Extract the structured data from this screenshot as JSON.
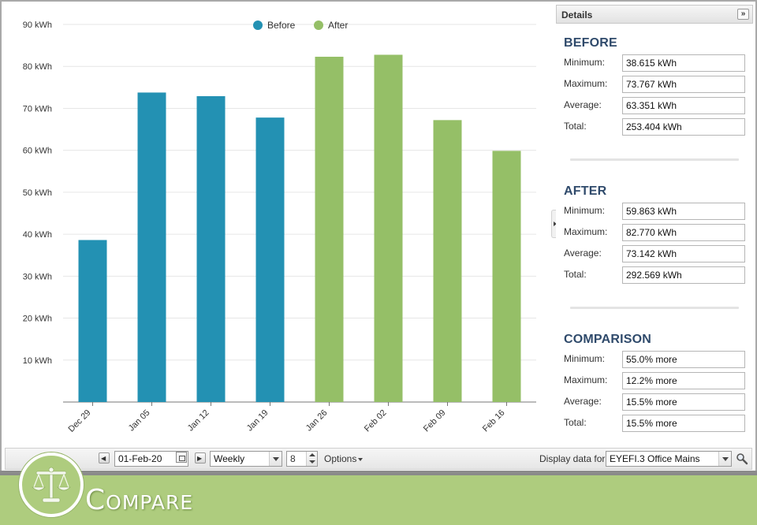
{
  "chart_data": {
    "type": "bar",
    "categories": [
      "Dec 29",
      "Jan 05",
      "Jan 12",
      "Jan 19",
      "Jan 26",
      "Feb 02",
      "Feb 09",
      "Feb 16"
    ],
    "values": [
      38.615,
      73.767,
      72.9,
      67.8,
      82.3,
      82.77,
      67.2,
      59.863
    ],
    "group": [
      "Before",
      "Before",
      "Before",
      "Before",
      "After",
      "After",
      "After",
      "After"
    ],
    "series": [
      {
        "name": "Before",
        "color": "#2391b3"
      },
      {
        "name": "After",
        "color": "#95bf67"
      }
    ],
    "unit": "kWh",
    "yticks": [
      10,
      20,
      30,
      40,
      50,
      60,
      70,
      80,
      90
    ],
    "ytick_labels": [
      "10 kWh",
      "20 kWh",
      "30 kWh",
      "40 kWh",
      "50 kWh",
      "60 kWh",
      "70 kWh",
      "80 kWh",
      "90 kWh"
    ],
    "ylim": [
      0,
      90
    ],
    "grid": true,
    "legend": "top-center"
  },
  "details": {
    "title": "Details",
    "toggle_label": "»",
    "sections": [
      {
        "title": "BEFORE",
        "rows": [
          {
            "label": "Minimum:",
            "value": "38.615 kWh"
          },
          {
            "label": "Maximum:",
            "value": "73.767 kWh"
          },
          {
            "label": "Average:",
            "value": "63.351 kWh"
          },
          {
            "label": "Total:",
            "value": "253.404 kWh"
          }
        ]
      },
      {
        "title": "AFTER",
        "rows": [
          {
            "label": "Minimum:",
            "value": "59.863 kWh"
          },
          {
            "label": "Maximum:",
            "value": "82.770 kWh"
          },
          {
            "label": "Average:",
            "value": "73.142 kWh"
          },
          {
            "label": "Total:",
            "value": "292.569 kWh"
          }
        ]
      },
      {
        "title": "COMPARISON",
        "rows": [
          {
            "label": "Minimum:",
            "value": "55.0% more"
          },
          {
            "label": "Maximum:",
            "value": "12.2% more"
          },
          {
            "label": "Average:",
            "value": "15.5% more"
          },
          {
            "label": "Total:",
            "value": "15.5% more"
          }
        ]
      }
    ]
  },
  "toolbar": {
    "date_value": "01-Feb-20",
    "interval_value": "Weekly",
    "count_value": "8",
    "options_label": "Options",
    "display_label": "Display data for:",
    "meter_value": "EYEFI.3 Office Mains"
  },
  "footer": {
    "title": "Compare"
  }
}
